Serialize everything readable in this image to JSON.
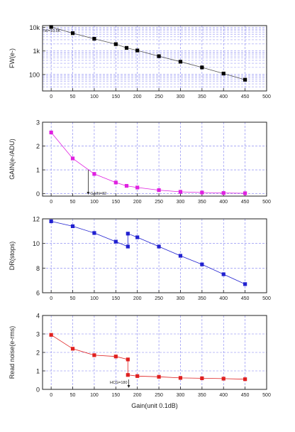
{
  "x_axis": {
    "label": "Gain(unit 0.1dB)",
    "lim": [
      -20,
      500
    ],
    "ticks": [
      0,
      50,
      100,
      150,
      200,
      250,
      300,
      350,
      400,
      450,
      500
    ],
    "tick_labels": [
      "0",
      "50",
      "100",
      "150",
      "200",
      "250",
      "300",
      "350",
      "400",
      "450",
      "500"
    ]
  },
  "chart_data": [
    {
      "type": "line",
      "ylabel": "FW(e-)",
      "yscale": "log",
      "ylim": [
        20,
        12000
      ],
      "yticks": [
        100,
        1000,
        10000
      ],
      "ytick_labels": [
        "100",
        "1k",
        "10k"
      ],
      "grid": true,
      "color": "#000000",
      "line_color": "#555555",
      "marker": "square",
      "x": [
        0,
        50,
        100,
        150,
        175,
        200,
        250,
        300,
        350,
        400,
        450
      ],
      "y": [
        10500,
        5700,
        3300,
        1950,
        1350,
        1050,
        600,
        350,
        200,
        110,
        60
      ],
      "annotations": [
        {
          "text": "FW=10.5K",
          "x": 0,
          "y": 10500
        }
      ]
    },
    {
      "type": "line",
      "ylabel": "GAIN(e-/ADU)",
      "ylim": [
        -0.1,
        3
      ],
      "yticks": [
        0,
        1,
        2,
        3
      ],
      "ytick_labels": [
        "0",
        "1",
        "2",
        "3"
      ],
      "grid": true,
      "color": "#e020e0",
      "marker": "square",
      "x": [
        0,
        50,
        100,
        150,
        175,
        200,
        250,
        300,
        350,
        400,
        450
      ],
      "y": [
        2.57,
        1.48,
        0.83,
        0.47,
        0.33,
        0.26,
        0.15,
        0.08,
        0.05,
        0.03,
        0.02
      ],
      "annotations": [
        {
          "text": "GAIN=82",
          "x": 86,
          "y": 1.0
        }
      ]
    },
    {
      "type": "line",
      "ylabel": "DR(stops)",
      "ylim": [
        6,
        12
      ],
      "yticks": [
        6,
        8,
        10,
        12
      ],
      "ytick_labels": [
        "6",
        "8",
        "10",
        "12"
      ],
      "grid": true,
      "color": "#2020d0",
      "marker": "square",
      "x": [
        0,
        50,
        100,
        150,
        178,
        178,
        200,
        250,
        300,
        350,
        400,
        450
      ],
      "y": [
        11.8,
        11.4,
        10.85,
        10.15,
        9.75,
        10.8,
        10.5,
        9.75,
        9.0,
        8.3,
        7.5,
        6.7
      ]
    },
    {
      "type": "line",
      "ylabel": "Read noise(e-rms)",
      "ylim": [
        0,
        4
      ],
      "yticks": [
        0,
        1,
        2,
        3,
        4
      ],
      "ytick_labels": [
        "0",
        "1",
        "2",
        "3",
        "4"
      ],
      "grid": true,
      "color": "#e02020",
      "marker": "square",
      "x": [
        0,
        50,
        100,
        150,
        178,
        178,
        200,
        250,
        300,
        350,
        400,
        450
      ],
      "y": [
        2.95,
        2.2,
        1.85,
        1.78,
        1.62,
        0.78,
        0.72,
        0.68,
        0.62,
        0.6,
        0.58,
        0.55
      ],
      "annotations": [
        {
          "text": "HCG=180",
          "x": 180,
          "y": 0
        }
      ]
    }
  ]
}
